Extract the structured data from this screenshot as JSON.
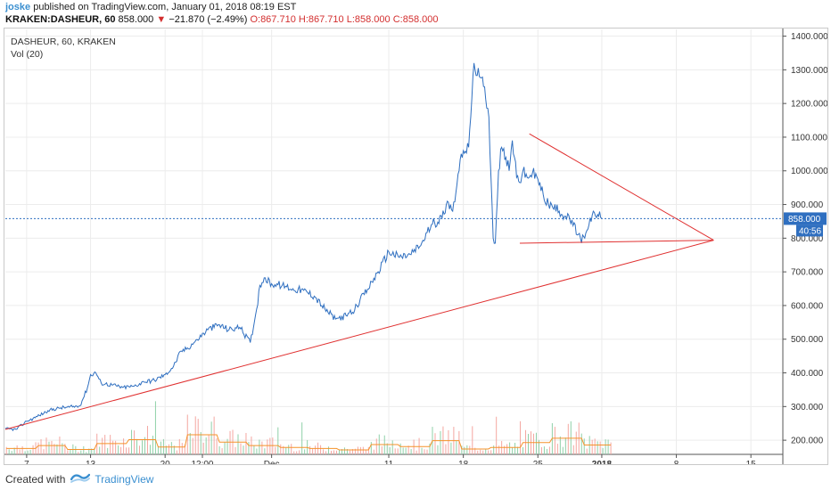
{
  "publish": {
    "author": "joske",
    "text": "published on TradingView.com, January 01, 2018 08:19 EST"
  },
  "quote": {
    "symbol": "KRAKEN:DASHEUR, 60",
    "last": "858.000",
    "arrow": "▼",
    "change": "−21.870 (−2.49%)",
    "open": "O:867.710",
    "high": "H:867.710",
    "low": "L:858.000",
    "close": "C:858.000"
  },
  "legend": {
    "title": "DASHEUR, 60, KRAKEN",
    "volume": "Vol (20)"
  },
  "price_badge": {
    "price": "858.000",
    "countdown": "40:56"
  },
  "footer": {
    "created": "Created with",
    "brand": "TradingView"
  },
  "colors": {
    "price_line": "#2f6fc0",
    "trendline": "#e03030",
    "vol_up": "#8fd0a8",
    "vol_down": "#f4a6a0",
    "vol_ma": "#f5922a",
    "badge": "#2f6fc0",
    "grid": "#ececec"
  },
  "chart_data": {
    "type": "line",
    "symbol": "DASHEUR",
    "interval": "60",
    "exchange": "KRAKEN",
    "x_ticks": [
      "7",
      "13",
      "20",
      "12:00",
      "Dec",
      "11",
      "18",
      "25",
      "2018",
      "8",
      "15"
    ],
    "x_tick_days": [
      7,
      13,
      20,
      23.5,
      30,
      41,
      48,
      55,
      61,
      68,
      75
    ],
    "y_ticks": [
      "1400.000",
      "1300.000",
      "1200.000",
      "1100.000",
      "1000.000",
      "900.000",
      "800.000",
      "700.000",
      "600.000",
      "500.000",
      "400.000",
      "300.000",
      "200.000"
    ],
    "ylim": [
      158,
      1420
    ],
    "xlim": [
      5,
      78
    ],
    "grid": true,
    "current_price": 858,
    "price_series": {
      "name": "DASHEUR",
      "x": [
        5.0,
        6.0,
        7.0,
        8.0,
        9.0,
        10.0,
        11.0,
        12.0,
        12.7,
        13.0,
        13.5,
        14.0,
        15.0,
        16.0,
        17.0,
        18.0,
        19.0,
        20.0,
        20.8,
        21.5,
        22.0,
        23.0,
        24.0,
        25.0,
        26.0,
        27.0,
        28.0,
        28.6,
        28.9,
        29.3,
        30.0,
        31.0,
        32.0,
        33.0,
        34.0,
        35.0,
        36.0,
        37.0,
        37.6,
        38.0,
        39.0,
        40.0,
        41.0,
        42.0,
        43.0,
        44.0,
        45.0,
        46.0,
        46.5,
        47.0,
        47.5,
        48.0,
        48.5,
        49.0,
        49.5,
        50.0,
        50.4,
        50.8,
        51.0,
        51.3,
        51.6,
        52.0,
        52.3,
        52.6,
        52.8,
        53.0,
        53.3,
        53.6,
        54.0,
        54.5,
        55.0,
        55.5,
        56.0,
        57.0,
        58.0,
        59.0,
        59.4,
        59.8,
        60.2,
        60.6,
        61.0
      ],
      "values": [
        234,
        232,
        256,
        270,
        288,
        296,
        298,
        302,
        355,
        395,
        400,
        370,
        364,
        357,
        360,
        373,
        378,
        395,
        420,
        465,
        470,
        499,
        528,
        543,
        528,
        535,
        490,
        590,
        660,
        682,
        665,
        660,
        650,
        645,
        628,
        590,
        560,
        570,
        580,
        600,
        648,
        700,
        760,
        743,
        752,
        778,
        840,
        860,
        910,
        880,
        990,
        1060,
        1070,
        1320,
        1280,
        1250,
        1160,
        800,
        785,
        1000,
        1070,
        1040,
        1000,
        1090,
        1040,
        980,
        965,
        1000,
        980,
        995,
        975,
        930,
        900,
        880,
        855,
        800,
        800,
        840,
        880,
        870,
        858
      ]
    },
    "volume_series": {
      "name": "Vol (20)",
      "levels": [
        12,
        18,
        10,
        22,
        30,
        15,
        40,
        25,
        18,
        14,
        12,
        9,
        20,
        16,
        28,
        11,
        14,
        24,
        33,
        19
      ]
    },
    "trendlines": [
      {
        "name": "support",
        "from": [
          5,
          232
        ],
        "to": [
          71.5,
          794
        ]
      },
      {
        "name": "resistance",
        "from": [
          54.2,
          1110
        ],
        "to": [
          71.5,
          794
        ]
      },
      {
        "name": "triangle-base",
        "from": [
          53.3,
          785
        ],
        "to": [
          71.5,
          794
        ]
      }
    ]
  }
}
